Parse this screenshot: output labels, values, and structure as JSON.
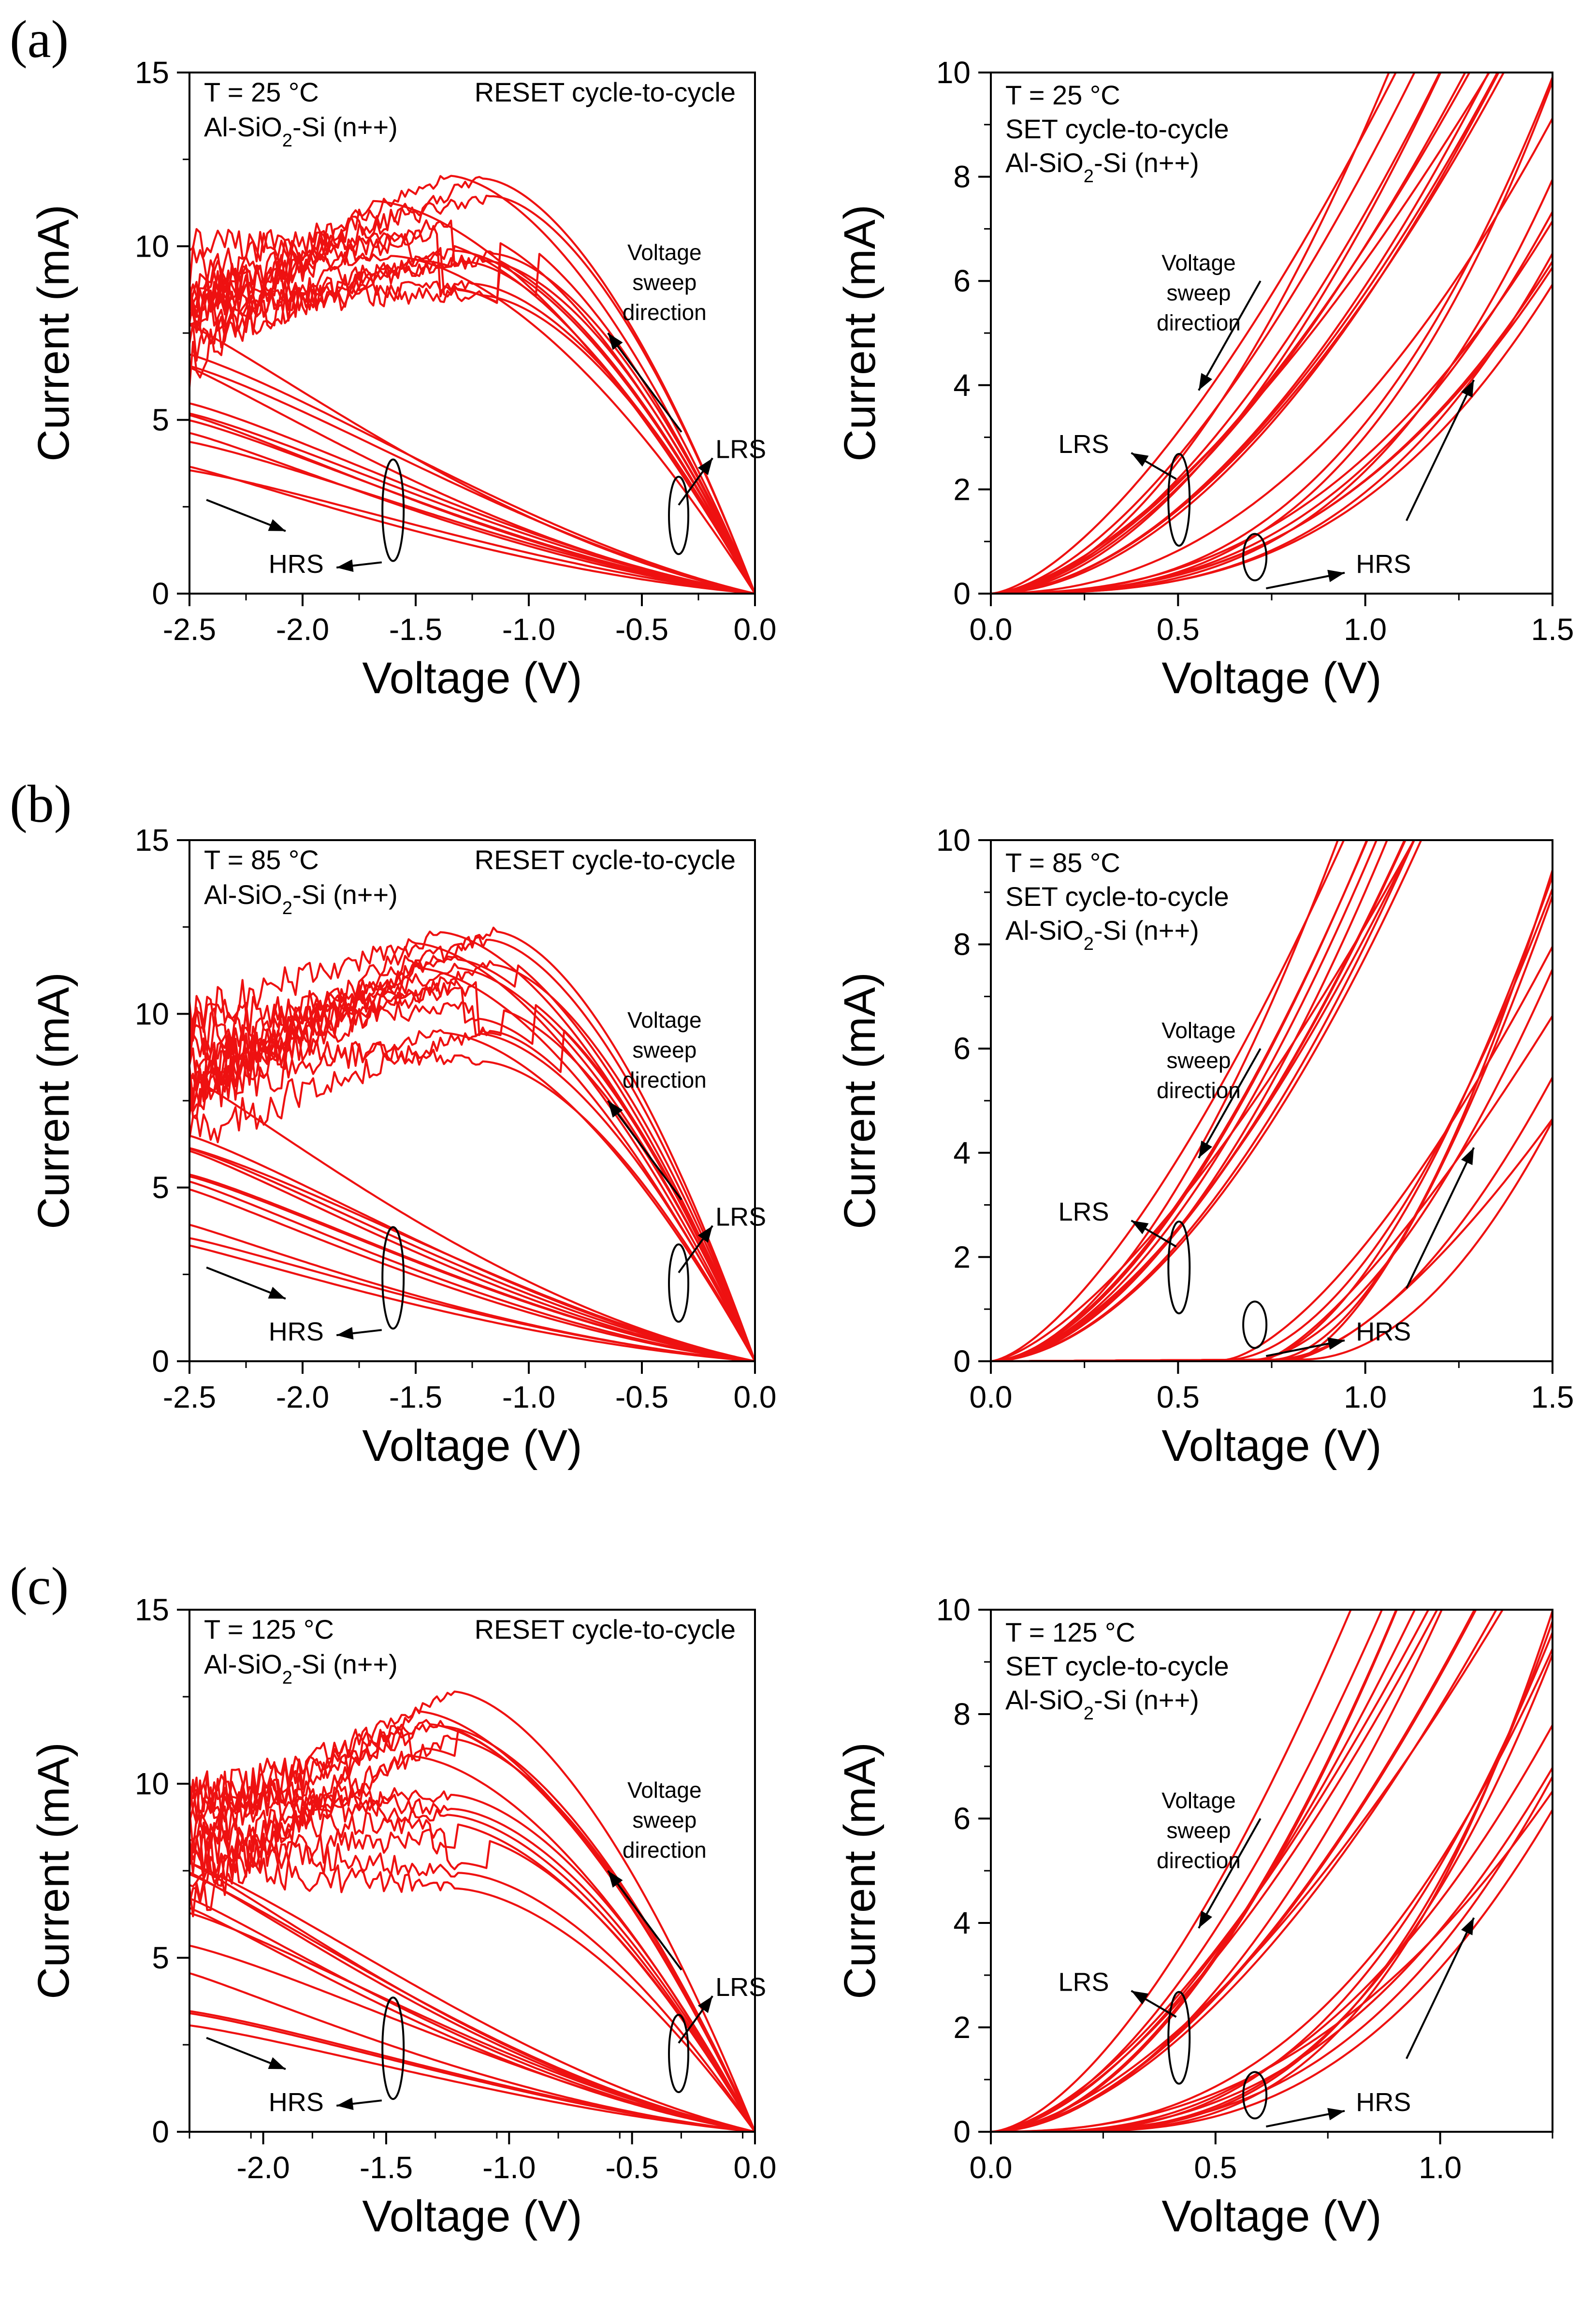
{
  "figure": {
    "panel_labels": [
      "(a)",
      "(b)",
      "(c)"
    ]
  },
  "colors": {
    "curve": "#ee1111",
    "axis": "#000000"
  },
  "chart_data": [
    {
      "id": "a-reset",
      "type": "line",
      "row": 0,
      "side": "reset",
      "xlim": [
        -2.5,
        0.0
      ],
      "ylim": [
        0,
        15
      ],
      "xticks": [
        "-2.5",
        "-2.0",
        "-1.5",
        "-1.0",
        "-0.5",
        "0.0"
      ],
      "yticks": [
        "0",
        "5",
        "10",
        "15"
      ],
      "xlabel": "Voltage (V)",
      "ylabel": "Current (mA)",
      "text_lines": [
        "T = 25 °C",
        "Al-SiO2-Si (n++)"
      ],
      "title": "RESET cycle-to-cycle",
      "annotations": [
        "Voltage",
        "sweep",
        "direction",
        "LRS",
        "HRS"
      ],
      "n_lrs_curves": 14,
      "n_hrs_curves": 12,
      "lrs_peak_v_range": [
        -1.7,
        -1.15
      ],
      "lrs_peak_i_range": [
        8.2,
        12.1
      ],
      "lrs_noise": 0.5,
      "hrs_end_i_range": [
        3.4,
        8.0
      ]
    },
    {
      "id": "a-set",
      "type": "line",
      "row": 0,
      "side": "set",
      "xlim": [
        0.0,
        1.5
      ],
      "ylim": [
        0,
        10
      ],
      "xticks": [
        "0.0",
        "0.5",
        "1.0",
        "1.5"
      ],
      "yticks": [
        "0",
        "2",
        "4",
        "6",
        "8",
        "10"
      ],
      "xlabel": "Voltage (V)",
      "ylabel": "Current (mA)",
      "text_lines": [
        "T = 25 °C",
        "SET cycle-to-cycle",
        "Al-SiO2-Si (n++)"
      ],
      "annotations": [
        "Voltage",
        "sweep",
        "direction",
        "LRS",
        "HRS"
      ],
      "n_lrs_curves": 12,
      "n_hrs_curves": 10,
      "lrs_reach_v_range": [
        0.95,
        1.5
      ],
      "hrs_end_i_range": [
        5.5,
        10.0
      ],
      "hrs_exp_range": [
        2.0,
        3.2
      ],
      "hrs_threshold": [
        0.0,
        0.0
      ]
    },
    {
      "id": "b-reset",
      "type": "line",
      "row": 1,
      "side": "reset",
      "xlim": [
        -2.5,
        0.0
      ],
      "ylim": [
        0,
        15
      ],
      "xticks": [
        "-2.5",
        "-2.0",
        "-1.5",
        "-1.0",
        "-0.5",
        "0.0"
      ],
      "yticks": [
        "0",
        "5",
        "10",
        "15"
      ],
      "xlabel": "Voltage (V)",
      "ylabel": "Current (mA)",
      "text_lines": [
        "T = 85 °C",
        "Al-SiO2-Si (n++)"
      ],
      "title": "RESET cycle-to-cycle",
      "annotations": [
        "Voltage",
        "sweep",
        "direction",
        "LRS",
        "HRS"
      ],
      "n_lrs_curves": 14,
      "n_hrs_curves": 12,
      "lrs_peak_v_range": [
        -1.6,
        -1.05
      ],
      "lrs_peak_i_range": [
        8.5,
        12.7
      ],
      "lrs_noise": 0.55,
      "hrs_end_i_range": [
        2.5,
        8.5
      ]
    },
    {
      "id": "b-set",
      "type": "line",
      "row": 1,
      "side": "set",
      "xlim": [
        0.0,
        1.5
      ],
      "ylim": [
        0,
        10
      ],
      "xticks": [
        "0.0",
        "0.5",
        "1.0",
        "1.5"
      ],
      "yticks": [
        "0",
        "2",
        "4",
        "6",
        "8",
        "10"
      ],
      "xlabel": "Voltage (V)",
      "ylabel": "Current (mA)",
      "text_lines": [
        "T = 85 °C",
        "SET cycle-to-cycle",
        "Al-SiO2-Si (n++)"
      ],
      "annotations": [
        "Voltage",
        "sweep",
        "direction",
        "LRS",
        "HRS"
      ],
      "n_lrs_curves": 12,
      "n_hrs_curves": 10,
      "lrs_reach_v_range": [
        0.9,
        1.2
      ],
      "hrs_end_i_range": [
        4.0,
        10.0
      ],
      "hrs_exp_range": [
        1.2,
        2.0
      ],
      "hrs_threshold": [
        0.6,
        0.85
      ]
    },
    {
      "id": "c-reset",
      "type": "line",
      "row": 2,
      "side": "reset",
      "xlim": [
        -2.3,
        0.0
      ],
      "ylim": [
        0,
        15
      ],
      "xticks": [
        "-2.0",
        "-1.5",
        "-1.0",
        "-0.5",
        "0.0"
      ],
      "yticks": [
        "0",
        "5",
        "10",
        "15"
      ],
      "xlabel": "Voltage (V)",
      "ylabel": "Current (mA)",
      "text_lines": [
        "T = 125 °C",
        "Al-SiO2-Si (n++)"
      ],
      "title": "RESET cycle-to-cycle",
      "annotations": [
        "Voltage",
        "sweep",
        "direction",
        "LRS",
        "HRS"
      ],
      "n_lrs_curves": 14,
      "n_hrs_curves": 12,
      "lrs_peak_v_range": [
        -1.45,
        -1.2
      ],
      "lrs_peak_i_range": [
        6.2,
        13.1
      ],
      "lrs_noise": 0.6,
      "hrs_end_i_range": [
        2.8,
        8.5
      ]
    },
    {
      "id": "c-set",
      "type": "line",
      "row": 2,
      "side": "set",
      "xlim": [
        0.0,
        1.25
      ],
      "ylim": [
        0,
        10
      ],
      "xticks": [
        "0.0",
        "0.5",
        "1.0"
      ],
      "yticks": [
        "0",
        "2",
        "4",
        "6",
        "8",
        "10"
      ],
      "xlabel": "Voltage (V)",
      "ylabel": "Current (mA)",
      "text_lines": [
        "T = 125 °C",
        "SET cycle-to-cycle",
        "Al-SiO2-Si (n++)"
      ],
      "annotations": [
        "Voltage",
        "sweep",
        "direction",
        "LRS",
        "HRS"
      ],
      "n_lrs_curves": 12,
      "n_hrs_curves": 10,
      "lrs_reach_v_range": [
        0.8,
        1.15
      ],
      "hrs_end_i_range": [
        6.0,
        10.0
      ],
      "hrs_exp_range": [
        2.2,
        3.0
      ],
      "hrs_threshold": [
        0.0,
        0.2
      ]
    }
  ]
}
